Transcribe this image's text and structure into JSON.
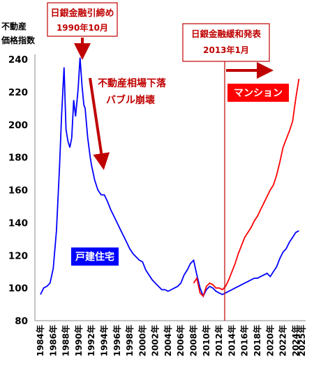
{
  "chart_data": {
    "type": "line",
    "ylabel_line1": "不動産",
    "ylabel_line2": "価格指数",
    "ylim": [
      80,
      240
    ],
    "yticks": [
      80,
      100,
      120,
      140,
      160,
      180,
      200,
      220,
      240
    ],
    "xlim": [
      1984,
      2025
    ],
    "xticks": [
      "1984年",
      "1986年",
      "1988年",
      "1990年",
      "1992年",
      "1994年",
      "1996年",
      "1998年",
      "2000年",
      "2002年",
      "2004年",
      "2006年",
      "2008年",
      "2010年",
      "2012年",
      "2014年",
      "2016年",
      "2018年",
      "2020年",
      "2022年",
      "2024年",
      "2025年"
    ],
    "xtick_values": [
      1984,
      1986,
      1988,
      1990,
      1992,
      1994,
      1996,
      1998,
      2000,
      2002,
      2004,
      2006,
      2008,
      2010,
      2012,
      2014,
      2016,
      2018,
      2020,
      2022,
      2024,
      2025
    ],
    "grid": false,
    "series": [
      {
        "name": "戸建住宅",
        "color": "#0000ff",
        "x": [
          1984,
          1984.5,
          1985,
          1985.5,
          1986,
          1986.5,
          1987,
          1987.3,
          1987.7,
          1988,
          1988.3,
          1988.6,
          1988.9,
          1989.2,
          1989.5,
          1989.9,
          1990.2,
          1990.5,
          1990.8,
          1991,
          1991.4,
          1991.8,
          1992,
          1992.5,
          1993,
          1993.5,
          1994,
          1994.5,
          1995,
          1995.5,
          1996,
          1996.5,
          1997,
          1997.5,
          1998,
          1998.5,
          1999,
          1999.5,
          2000,
          2000.5,
          2001,
          2001.5,
          2002,
          2002.5,
          2003,
          2003.5,
          2004,
          2004.5,
          2005,
          2005.5,
          2006,
          2006.5,
          2007,
          2007.5,
          2008,
          2008.5,
          2009,
          2009.5,
          2010,
          2010.5,
          2011,
          2011.5,
          2012,
          2012.5,
          2013,
          2013.5,
          2014,
          2014.5,
          2015,
          2015.5,
          2016,
          2016.5,
          2017,
          2017.5,
          2018,
          2018.5,
          2019,
          2019.5,
          2020,
          2020.5,
          2021,
          2021.5,
          2022,
          2022.5,
          2023,
          2023.5,
          2024,
          2024.5
        ],
        "values": [
          96,
          100,
          101,
          103,
          112,
          135,
          175,
          205,
          235,
          197,
          190,
          186,
          192,
          215,
          205,
          222,
          241,
          224,
          212,
          210,
          192,
          180,
          175,
          166,
          160,
          157,
          157,
          153,
          148,
          144,
          140,
          136,
          132,
          128,
          124,
          121,
          119,
          117,
          116,
          111,
          108,
          105,
          103,
          101,
          99,
          99,
          98,
          99,
          100,
          101,
          103,
          108,
          111,
          115,
          117,
          108,
          100,
          95,
          99,
          101,
          100,
          98,
          97,
          96,
          97,
          98,
          99,
          100,
          101,
          102,
          103,
          104,
          105,
          106,
          106,
          107,
          108,
          109,
          107,
          110,
          113,
          118,
          122,
          124,
          128,
          131,
          134,
          135
        ]
      },
      {
        "name": "マンション",
        "color": "#ff0000",
        "x": [
          2008,
          2008.5,
          2009,
          2009.5,
          2010,
          2010.5,
          2011,
          2011.5,
          2012,
          2012.5,
          2013,
          2013.5,
          2014,
          2014.5,
          2015,
          2015.5,
          2016,
          2016.5,
          2017,
          2017.5,
          2018,
          2018.5,
          2019,
          2019.5,
          2020,
          2020.5,
          2021,
          2021.5,
          2022,
          2022.5,
          2023,
          2023.5,
          2024,
          2024.5
        ],
        "values": [
          103,
          106,
          97,
          95,
          101,
          103,
          102,
          100,
          100,
          99,
          101,
          105,
          110,
          115,
          121,
          126,
          131,
          134,
          137,
          141,
          144,
          148,
          152,
          156,
          160,
          163,
          169,
          177,
          186,
          191,
          196,
          202,
          216,
          228
        ]
      }
    ],
    "annotations": {
      "boj_tighten_line1": "日銀金融引締め",
      "boj_tighten_line2": "1990年10月",
      "boj_ease_line1": "日銀金融緩和発表",
      "boj_ease_line2": "2013年1月",
      "crash_line1": "不動産相場下落",
      "crash_line2": "バブル崩壊",
      "label_house": "戸建住宅",
      "label_mansion": "マンション"
    }
  },
  "colors": {
    "accent_red": "#c00000",
    "house_blue": "#0000ff",
    "mansion_red": "#ff0000"
  }
}
